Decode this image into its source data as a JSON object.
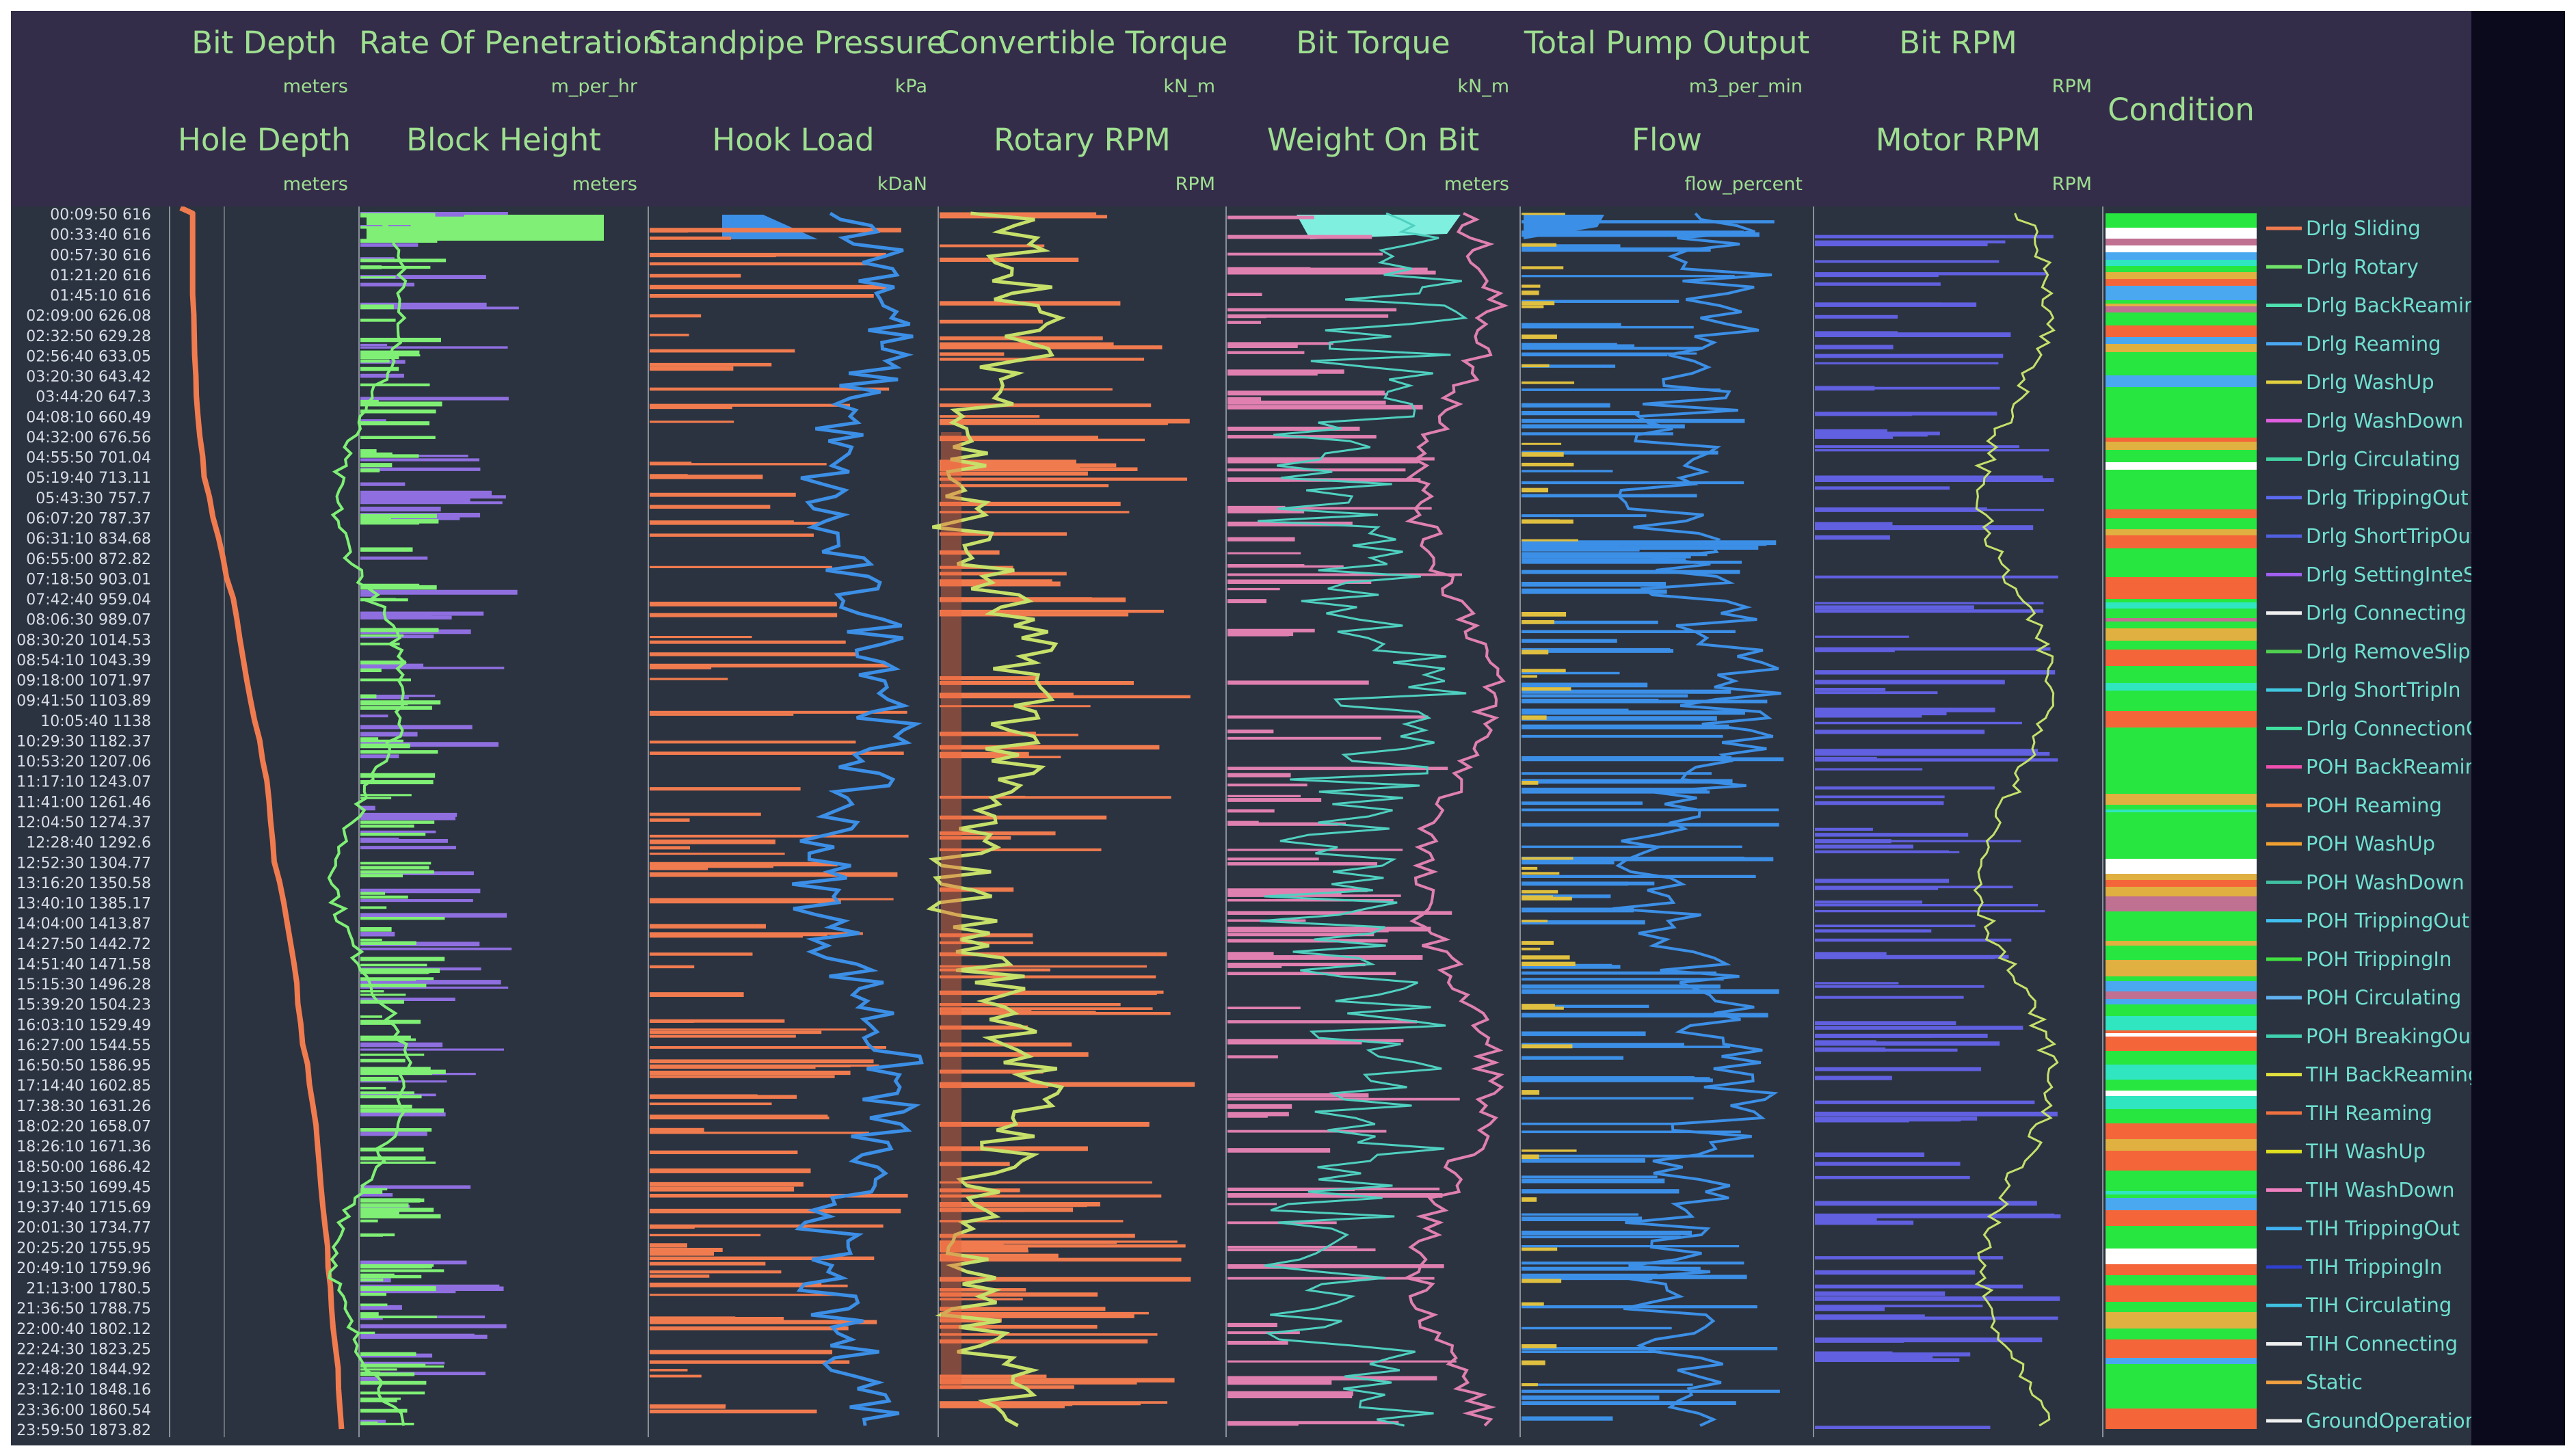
{
  "tracks_row1": [
    {
      "title": "Bit Depth",
      "unit": "meters"
    },
    {
      "title": "Rate Of Penetration",
      "unit": "m_per_hr"
    },
    {
      "title": "Standpipe Pressure",
      "unit": "kPa"
    },
    {
      "title": "Convertible Torque",
      "unit": "kN_m"
    },
    {
      "title": "Bit Torque",
      "unit": "kN_m"
    },
    {
      "title": "Total Pump Output",
      "unit": "m3_per_min"
    },
    {
      "title": "Bit RPM",
      "unit": "RPM"
    }
  ],
  "tracks_row2": [
    {
      "title": "Hole Depth",
      "unit": "meters"
    },
    {
      "title": "Block Height",
      "unit": "meters"
    },
    {
      "title": "Hook Load",
      "unit": "kDaN"
    },
    {
      "title": "Rotary RPM",
      "unit": "RPM"
    },
    {
      "title": "Weight On Bit",
      "unit": "meters"
    },
    {
      "title": "Flow",
      "unit": "flow_percent"
    },
    {
      "title": "Motor RPM",
      "unit": "RPM"
    }
  ],
  "condition_title": "Condition",
  "chart_data": {
    "type": "line",
    "orientation": "vertical-log-tracks",
    "y_index": [
      {
        "time": "00:09:50",
        "depth": "616"
      },
      {
        "time": "00:33:40",
        "depth": "616"
      },
      {
        "time": "00:57:30",
        "depth": "616"
      },
      {
        "time": "01:21:20",
        "depth": "616"
      },
      {
        "time": "01:45:10",
        "depth": "616"
      },
      {
        "time": "02:09:00",
        "depth": "626.08"
      },
      {
        "time": "02:32:50",
        "depth": "629.28"
      },
      {
        "time": "02:56:40",
        "depth": "633.05"
      },
      {
        "time": "03:20:30",
        "depth": "643.42"
      },
      {
        "time": "03:44:20",
        "depth": "647.3"
      },
      {
        "time": "04:08:10",
        "depth": "660.49"
      },
      {
        "time": "04:32:00",
        "depth": "676.56"
      },
      {
        "time": "04:55:50",
        "depth": "701.04"
      },
      {
        "time": "05:19:40",
        "depth": "713.11"
      },
      {
        "time": "05:43:30",
        "depth": "757.7"
      },
      {
        "time": "06:07:20",
        "depth": "787.37"
      },
      {
        "time": "06:31:10",
        "depth": "834.68"
      },
      {
        "time": "06:55:00",
        "depth": "872.82"
      },
      {
        "time": "07:18:50",
        "depth": "903.01"
      },
      {
        "time": "07:42:40",
        "depth": "959.04"
      },
      {
        "time": "08:06:30",
        "depth": "989.07"
      },
      {
        "time": "08:30:20",
        "depth": "1014.53"
      },
      {
        "time": "08:54:10",
        "depth": "1043.39"
      },
      {
        "time": "09:18:00",
        "depth": "1071.97"
      },
      {
        "time": "09:41:50",
        "depth": "1103.89"
      },
      {
        "time": "10:05:40",
        "depth": "1138"
      },
      {
        "time": "10:29:30",
        "depth": "1182.37"
      },
      {
        "time": "10:53:20",
        "depth": "1207.06"
      },
      {
        "time": "11:17:10",
        "depth": "1243.07"
      },
      {
        "time": "11:41:00",
        "depth": "1261.46"
      },
      {
        "time": "12:04:50",
        "depth": "1274.37"
      },
      {
        "time": "12:28:40",
        "depth": "1292.6"
      },
      {
        "time": "12:52:30",
        "depth": "1304.77"
      },
      {
        "time": "13:16:20",
        "depth": "1350.58"
      },
      {
        "time": "13:40:10",
        "depth": "1385.17"
      },
      {
        "time": "14:04:00",
        "depth": "1413.87"
      },
      {
        "time": "14:27:50",
        "depth": "1442.72"
      },
      {
        "time": "14:51:40",
        "depth": "1471.58"
      },
      {
        "time": "15:15:30",
        "depth": "1496.28"
      },
      {
        "time": "15:39:20",
        "depth": "1504.23"
      },
      {
        "time": "16:03:10",
        "depth": "1529.49"
      },
      {
        "time": "16:27:00",
        "depth": "1544.55"
      },
      {
        "time": "16:50:50",
        "depth": "1586.95"
      },
      {
        "time": "17:14:40",
        "depth": "1602.85"
      },
      {
        "time": "17:38:30",
        "depth": "1631.26"
      },
      {
        "time": "18:02:20",
        "depth": "1658.07"
      },
      {
        "time": "18:26:10",
        "depth": "1671.36"
      },
      {
        "time": "18:50:00",
        "depth": "1686.42"
      },
      {
        "time": "19:13:50",
        "depth": "1699.45"
      },
      {
        "time": "19:37:40",
        "depth": "1715.69"
      },
      {
        "time": "20:01:30",
        "depth": "1734.77"
      },
      {
        "time": "20:25:20",
        "depth": "1755.95"
      },
      {
        "time": "20:49:10",
        "depth": "1759.96"
      },
      {
        "time": "21:13:00",
        "depth": "1780.5"
      },
      {
        "time": "21:36:50",
        "depth": "1788.75"
      },
      {
        "time": "22:00:40",
        "depth": "1802.12"
      },
      {
        "time": "22:24:30",
        "depth": "1823.25"
      },
      {
        "time": "22:48:20",
        "depth": "1844.92"
      },
      {
        "time": "23:12:10",
        "depth": "1848.16"
      },
      {
        "time": "23:36:00",
        "depth": "1860.54"
      },
      {
        "time": "23:59:50",
        "depth": "1873.82"
      }
    ],
    "series": [
      {
        "name": "Hole Depth",
        "track": 1,
        "color": "#f07b4f",
        "values": [
          616,
          616,
          616,
          616,
          616,
          626.08,
          629.28,
          633.05,
          643.42,
          647.3,
          660.49,
          676.56,
          701.04,
          713.11,
          757.7,
          787.37,
          834.68,
          872.82,
          903.01,
          959.04,
          989.07,
          1014.53,
          1043.39,
          1071.97,
          1103.89,
          1138,
          1182.37,
          1207.06,
          1243.07,
          1261.46,
          1274.37,
          1292.6,
          1304.77,
          1350.58,
          1385.17,
          1413.87,
          1442.72,
          1471.58,
          1496.28,
          1504.23,
          1529.49,
          1544.55,
          1586.95,
          1602.85,
          1631.26,
          1658.07,
          1671.36,
          1686.42,
          1699.45,
          1715.69,
          1734.77,
          1755.95,
          1759.96,
          1780.5,
          1788.75,
          1802.12,
          1823.25,
          1844.92,
          1848.16,
          1860.54,
          1873.82
        ]
      }
    ],
    "legend": [
      {
        "label": "Drlg Sliding",
        "color": "#f07b4f"
      },
      {
        "label": "Drlg Rotary",
        "color": "#6fe06a"
      },
      {
        "label": "Drlg BackReaming",
        "color": "#4fe0b0"
      },
      {
        "label": "Drlg Reaming",
        "color": "#4aa8f0"
      },
      {
        "label": "Drlg WashUp",
        "color": "#e0d040"
      },
      {
        "label": "Drlg WashDown",
        "color": "#e060e0"
      },
      {
        "label": "Drlg Circulating",
        "color": "#40d0a0"
      },
      {
        "label": "Drlg TrippingOut Preparation",
        "color": "#5a6af0"
      },
      {
        "label": "Drlg ShortTripOut",
        "color": "#5060e0"
      },
      {
        "label": "Drlg SettingInteSlips",
        "color": "#a060f0"
      },
      {
        "label": "Drlg Connecting",
        "color": "#f0f0f0"
      },
      {
        "label": "Drlg RemoveSlips",
        "color": "#50d050"
      },
      {
        "label": "Drlg ShortTripIn",
        "color": "#40c8e0"
      },
      {
        "label": "Drlg ConnectionCompleted",
        "color": "#40e0a0"
      },
      {
        "label": "POH BackReaming",
        "color": "#f050b0"
      },
      {
        "label": "POH Reaming",
        "color": "#f08040"
      },
      {
        "label": "POH WashUp",
        "color": "#f0a030"
      },
      {
        "label": "POH WashDown",
        "color": "#40c0a0"
      },
      {
        "label": "POH TrippingOut",
        "color": "#40c0f0"
      },
      {
        "label": "POH TrippingIn",
        "color": "#40e040"
      },
      {
        "label": "POH Circulating",
        "color": "#60b0f0"
      },
      {
        "label": "POH BreakingOut",
        "color": "#40d0b0"
      },
      {
        "label": "TIH BackReaming",
        "color": "#e0e040"
      },
      {
        "label": "TIH Reaming",
        "color": "#f07040"
      },
      {
        "label": "TIH WashUp",
        "color": "#e0e020"
      },
      {
        "label": "TIH WashDown",
        "color": "#f080c0"
      },
      {
        "label": "TIH TrippingOut",
        "color": "#40b0f0"
      },
      {
        "label": "TIH TrippingIn",
        "color": "#3040d0"
      },
      {
        "label": "TIH Circulating",
        "color": "#40c0e0"
      },
      {
        "label": "TIH Connecting",
        "color": "#f0f0f0"
      },
      {
        "label": "Static",
        "color": "#f0a040"
      },
      {
        "label": "GroundOperations",
        "color": "#f0f0f0"
      }
    ],
    "track_colors": {
      "block_height": "#7ff075",
      "rop": "#8f6fe0",
      "standpipe": "#f07b4f",
      "hookload": "#3c8fe6",
      "rotary": "#f07b4f",
      "conv_torque": "#c6e06a",
      "wob": "#e080b0",
      "bit_torque": "#4fd0c0",
      "flow": "#3c8fe6",
      "pump": "#e0c040",
      "bit_rpm": "#6060e0",
      "motor_rpm": "#c6e06a"
    },
    "condition_palette": [
      "#27e640",
      "#f5653a",
      "#f5653a",
      "#e0b040",
      "#2fe6c0",
      "#4aa8f0",
      "#ffffff",
      "#c07090"
    ],
    "grid": false
  }
}
